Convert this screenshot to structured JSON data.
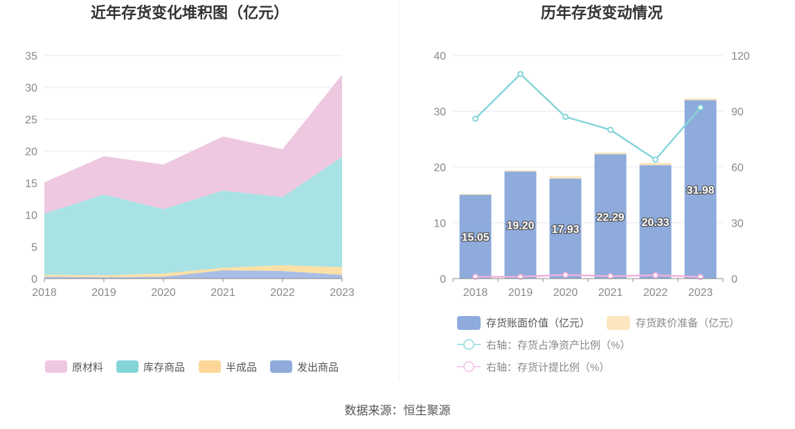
{
  "left_chart": {
    "title": "近年存货变化堆积图（亿元）",
    "legend": [
      "原材料",
      "库存商品",
      "半成品",
      "发出商品"
    ]
  },
  "right_chart": {
    "title": "历年存货变动情况",
    "legend": [
      "存货账面价值（亿元）",
      "存货跌价准备（亿元）",
      "右轴：存货占净资产比例（%）",
      "右轴：存货计提比例（%）"
    ]
  },
  "source": "数据来源：恒生聚源",
  "colors": {
    "raw": "#eec8e0",
    "finished": "#a8e2e4",
    "semi": "#fde0a5",
    "shipped": "#a9bde5",
    "bar": "#8eabdc",
    "provision": "#fce5bf",
    "line_ratio": "#85d5d8",
    "line_prov": "#efb1db",
    "grid": "#e6e8f5",
    "axis": "#888888"
  },
  "chart_data": [
    {
      "type": "area",
      "title": "近年存货变化堆积图（亿元）",
      "x": [
        "2018",
        "2019",
        "2020",
        "2021",
        "2022",
        "2023"
      ],
      "ylim": [
        0,
        35
      ],
      "yticks": [
        0,
        5,
        10,
        15,
        20,
        25,
        30,
        35
      ],
      "stacked": true,
      "grid": true,
      "legend_position": "bottom",
      "series": [
        {
          "name": "发出商品",
          "values": [
            0.3,
            0.2,
            0.3,
            1.3,
            1.2,
            0.6
          ]
        },
        {
          "name": "半成品",
          "values": [
            0.3,
            0.3,
            0.5,
            0.4,
            0.9,
            1.2
          ]
        },
        {
          "name": "库存商品",
          "values": [
            9.6,
            12.7,
            10.1,
            12.1,
            10.7,
            17.3
          ]
        },
        {
          "name": "原材料",
          "values": [
            4.9,
            6.0,
            7.0,
            8.5,
            7.5,
            12.9
          ]
        }
      ]
    },
    {
      "type": "bar",
      "title": "历年存货变动情况",
      "categories": [
        "2018",
        "2019",
        "2020",
        "2021",
        "2022",
        "2023"
      ],
      "ylim": [
        0,
        40
      ],
      "yticks": [
        0,
        10,
        20,
        30,
        40
      ],
      "y2lim": [
        0,
        120
      ],
      "y2ticks": [
        0,
        30,
        60,
        90,
        120
      ],
      "stacked": true,
      "grid": true,
      "legend_position": "bottom",
      "series": [
        {
          "name": "存货账面价值（亿元）",
          "kind": "bar",
          "values": [
            15.05,
            19.2,
            17.93,
            22.29,
            20.33,
            31.98
          ],
          "labels": [
            "15.05",
            "19.20",
            "17.93",
            "22.29",
            "20.33",
            "31.98"
          ]
        },
        {
          "name": "存货跌价准备（亿元）",
          "kind": "bar",
          "values": [
            0.15,
            0.2,
            0.4,
            0.3,
            0.4,
            0.3
          ]
        },
        {
          "name": "右轴：存货占净资产比例（%）",
          "kind": "line",
          "axis": "right",
          "values": [
            86,
            110,
            87,
            80,
            64,
            92
          ]
        },
        {
          "name": "右轴：存货计提比例（%）",
          "kind": "line",
          "axis": "right",
          "values": [
            1,
            1,
            2,
            1.3,
            1.8,
            0.9
          ]
        }
      ]
    }
  ]
}
